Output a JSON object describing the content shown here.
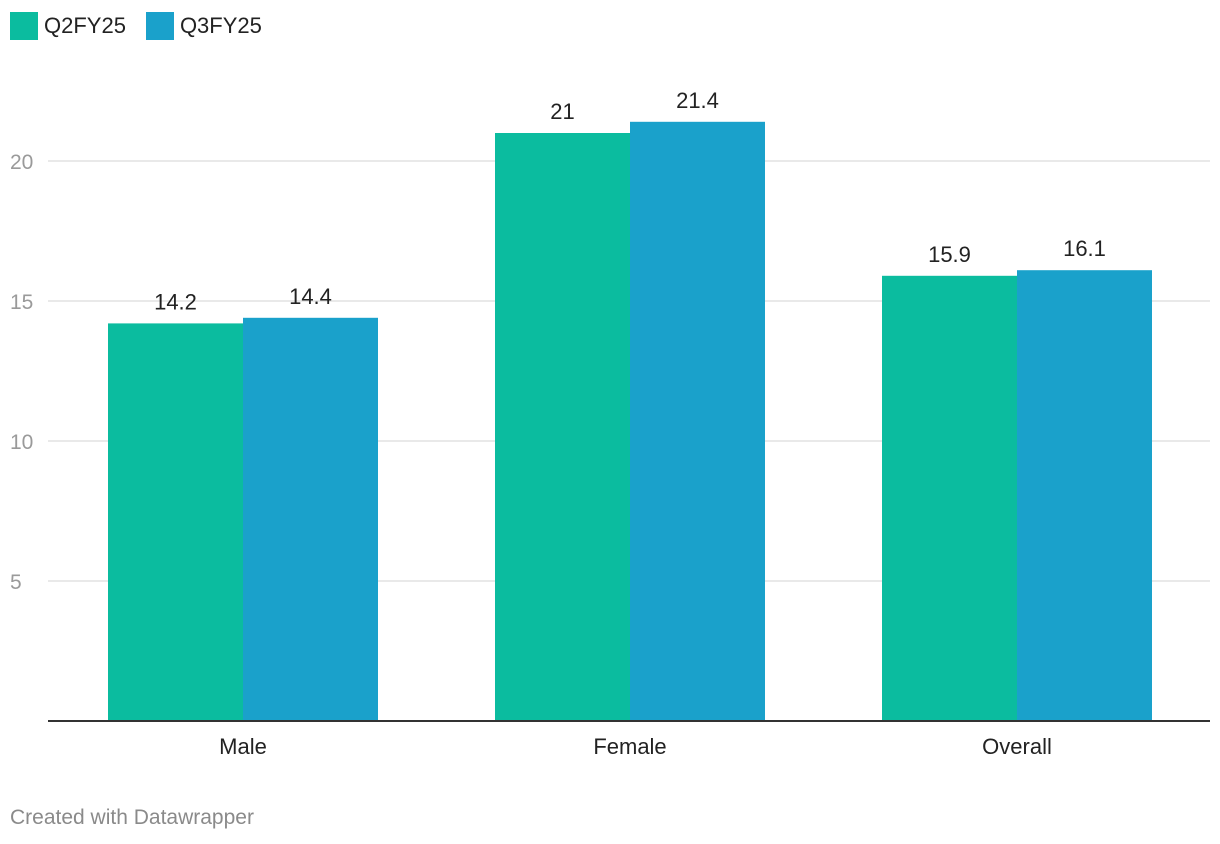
{
  "chart_data": {
    "type": "bar",
    "categories": [
      "Male",
      "Female",
      "Overall"
    ],
    "series": [
      {
        "name": "Q2FY25",
        "color": "#0bbc9f",
        "values": [
          14.2,
          21,
          15.9
        ],
        "labels": [
          "14.2",
          "21",
          "15.9"
        ]
      },
      {
        "name": "Q3FY25",
        "color": "#1aa1cb",
        "values": [
          14.4,
          21.4,
          16.1
        ],
        "labels": [
          "14.4",
          "21.4",
          "16.1"
        ]
      }
    ],
    "yticks": [
      5,
      10,
      15,
      20
    ],
    "ylim": [
      0,
      22
    ],
    "grid": true,
    "legend_position": "top-left",
    "xlabel": "",
    "ylabel": ""
  },
  "footer": {
    "credit": "Created with Datawrapper"
  }
}
